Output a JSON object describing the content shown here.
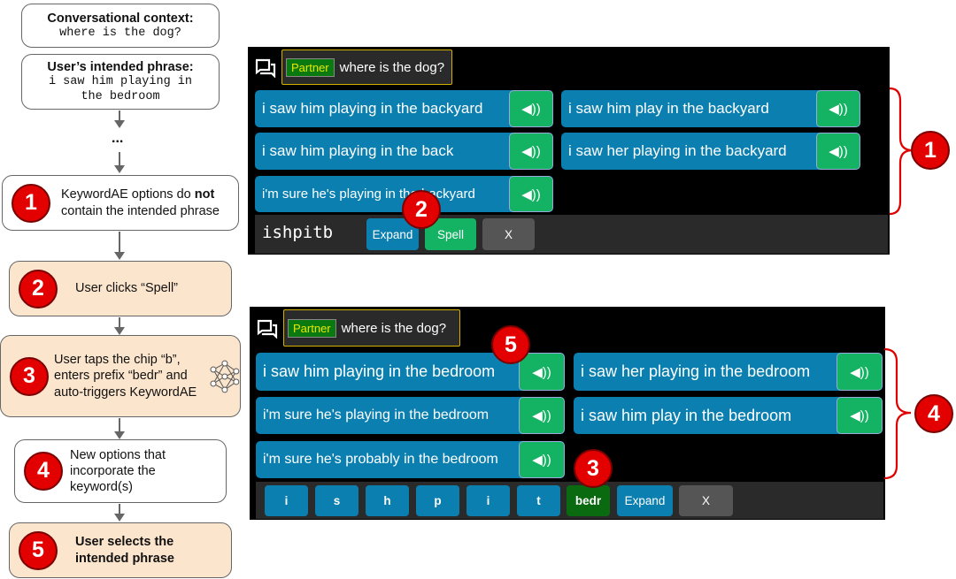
{
  "flow": {
    "context_title": "Conversational context:",
    "context_value": "where is the dog?",
    "intended_title": "User’s intended phrase:",
    "intended_value": "i saw him playing in the bedroom",
    "ellipsis": "...",
    "steps": [
      {
        "n": "1",
        "pre": "KeywordAE options do ",
        "bold": "not",
        "post": " contain the intended phrase"
      },
      {
        "n": "2",
        "text": "User clicks “Spell”"
      },
      {
        "n": "3",
        "text": "User taps the chip “b”, enters prefix “bedr” and auto-triggers KeywordAE",
        "icon": "neural-network-icon"
      },
      {
        "n": "4",
        "text": "New options that incorporate the keyword(s)"
      },
      {
        "n": "5",
        "text": "User selects the intended phrase"
      }
    ]
  },
  "panel1": {
    "partner_label": "Partner",
    "partner_text": "where is the dog?",
    "options": [
      "i saw him playing in the backyard",
      "i saw him play in the backyard",
      "i saw him playing in the back",
      "i saw her playing in the backyard",
      "i'm sure he's playing in the backyard"
    ],
    "input": "ishpitb",
    "expand": "Expand",
    "spell": "Spell",
    "close": "X",
    "badge_step": "1",
    "badge_spell": "2"
  },
  "panel2": {
    "partner_label": "Partner",
    "partner_text": "where is the dog?",
    "options": [
      "i saw him playing in the bedroom",
      "i saw her playing in the bedroom",
      "i'm sure he's playing in the bedroom",
      "i saw him play in the bedroom",
      "i'm sure he's probably in the bedroom"
    ],
    "chips": [
      "i",
      "s",
      "h",
      "p",
      "i",
      "t"
    ],
    "prefix": "bedr",
    "expand": "Expand",
    "close": "X",
    "badge_select": "5",
    "badge_prefix": "3",
    "badge_step": "4"
  },
  "speaker_glyph": "◀))",
  "colors": {
    "option": "#0a7fb0",
    "speaker": "#13b363",
    "badge": "#e30000",
    "peach": "#fce5cd",
    "brace": "#e00000"
  }
}
